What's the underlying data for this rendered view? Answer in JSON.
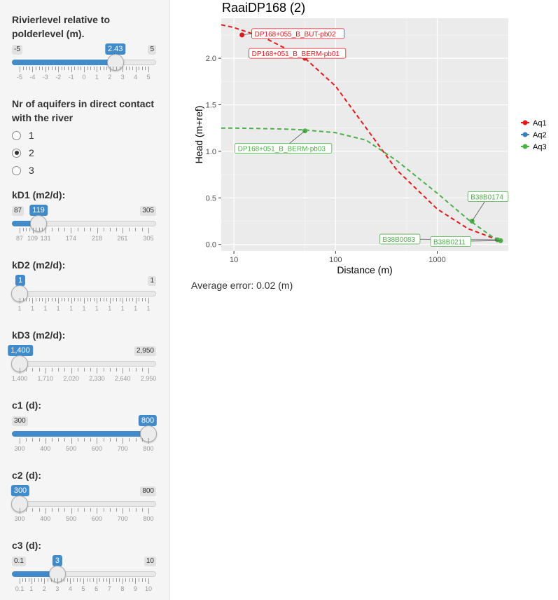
{
  "sidebar": {
    "river_level": {
      "label": "Rivierlevel relative to polderlevel (m).",
      "min": -5,
      "max": 5,
      "value": 2.43,
      "value_label": "2.43",
      "min_label": "-5",
      "max_label": "5",
      "ticks": [
        "-5",
        "-4",
        "-3",
        "-2",
        "-1",
        "0",
        "1",
        "2",
        "3",
        "4",
        "5"
      ]
    },
    "aquifers": {
      "label": "Nr of aquifers in direct contact with the river",
      "options": [
        "1",
        "2",
        "3"
      ],
      "selected": "2"
    },
    "kd1": {
      "label": "kD1 (m2/d):",
      "min": 87,
      "max": 305,
      "value": 119,
      "value_label": "119",
      "min_label": "87",
      "max_label": "305",
      "ticks": [
        "87",
        "109",
        "131",
        "174",
        "218",
        "261",
        "305"
      ]
    },
    "kd2": {
      "label": "kD2 (m2/d):",
      "min": 1,
      "max": 1,
      "value": 1,
      "value_label": "1",
      "min_label": "",
      "max_label": "1",
      "ticks": [
        "1",
        "1",
        "1",
        "1",
        "1",
        "1",
        "1",
        "1",
        "1",
        "1",
        "1"
      ]
    },
    "kd3": {
      "label": "kD3 (m2/d):",
      "min": 1400,
      "max": 2950,
      "value": 1400,
      "value_label": "1,400",
      "min_label": "",
      "max_label": "2,950",
      "ticks": [
        "1,400",
        "1,710",
        "2,020",
        "2,330",
        "2,640",
        "2,950"
      ]
    },
    "c1": {
      "label": "c1 (d):",
      "min": 300,
      "max": 800,
      "value": 800,
      "value_label": "800",
      "min_label": "300",
      "max_label": "",
      "ticks": [
        "300",
        "400",
        "500",
        "600",
        "700",
        "800"
      ]
    },
    "c2": {
      "label": "c2 (d):",
      "min": 300,
      "max": 800,
      "value": 300,
      "value_label": "300",
      "min_label": "",
      "max_label": "800",
      "ticks": [
        "300",
        "400",
        "500",
        "600",
        "700",
        "800"
      ]
    },
    "c3": {
      "label": "c3 (d):",
      "min": 0.1,
      "max": 10,
      "value": 3,
      "value_label": "3",
      "min_label": "0.1",
      "max_label": "10",
      "ticks": [
        "0.1",
        "1",
        "2",
        "3",
        "4",
        "5",
        "6",
        "7",
        "8",
        "9",
        "10"
      ]
    }
  },
  "main": {
    "plot_title": "RaaiDP168 (2)",
    "average_error": "Average error: 0.02 (m)"
  },
  "chart_data": {
    "type": "line",
    "title": "RaaiDP168 (2)",
    "xlabel": "Distance (m)",
    "ylabel": "Head (m+ref)",
    "xscale": "log",
    "xlim": [
      7.5,
      5000
    ],
    "ylim": [
      -0.07,
      2.43
    ],
    "xticks": [
      {
        "value": 10,
        "label": "10"
      },
      {
        "value": 100,
        "label": "100"
      },
      {
        "value": 1000,
        "label": "1000"
      }
    ],
    "yticks": [
      {
        "value": 0,
        "label": "0.0"
      },
      {
        "value": 0.5,
        "label": "0.5"
      },
      {
        "value": 1.0,
        "label": "1.0"
      },
      {
        "value": 1.5,
        "label": "1.5"
      },
      {
        "value": 2.0,
        "label": "2.0"
      }
    ],
    "grid": true,
    "legend_position": "right",
    "series": [
      {
        "name": "Aq1",
        "color": "#e41a1c",
        "curve": [
          [
            7.5,
            2.36
          ],
          [
            10,
            2.33
          ],
          [
            20,
            2.22
          ],
          [
            50,
            2.0
          ],
          [
            100,
            1.7
          ],
          [
            200,
            1.25
          ],
          [
            400,
            0.8
          ],
          [
            1000,
            0.38
          ],
          [
            2000,
            0.17
          ],
          [
            3500,
            0.07
          ],
          [
            4200,
            0.04
          ]
        ],
        "points": [
          {
            "x": 12,
            "y": 2.25,
            "label": "DP168+055_B_BUT-pb02"
          },
          {
            "x": 50,
            "y": 2.0,
            "label": "DP168+051_B_BERM-pb01"
          }
        ]
      },
      {
        "name": "Aq2",
        "color": "#377eb8",
        "curve": [],
        "points": []
      },
      {
        "name": "Aq3",
        "color": "#4daf4a",
        "curve": [
          [
            7.5,
            1.25
          ],
          [
            10,
            1.25
          ],
          [
            30,
            1.24
          ],
          [
            50,
            1.23
          ],
          [
            100,
            1.2
          ],
          [
            200,
            1.12
          ],
          [
            400,
            0.9
          ],
          [
            1000,
            0.55
          ],
          [
            2000,
            0.27
          ],
          [
            3500,
            0.08
          ],
          [
            4200,
            0.05
          ]
        ],
        "points": [
          {
            "x": 50,
            "y": 1.22,
            "label": "DP168+051_B_BERM-pb03"
          },
          {
            "x": 2200,
            "y": 0.25,
            "label": "B38B0174"
          },
          {
            "x": 3900,
            "y": 0.05,
            "label": "B38B0083"
          },
          {
            "x": 4200,
            "y": 0.04,
            "label": "B38B0211"
          }
        ]
      }
    ]
  }
}
